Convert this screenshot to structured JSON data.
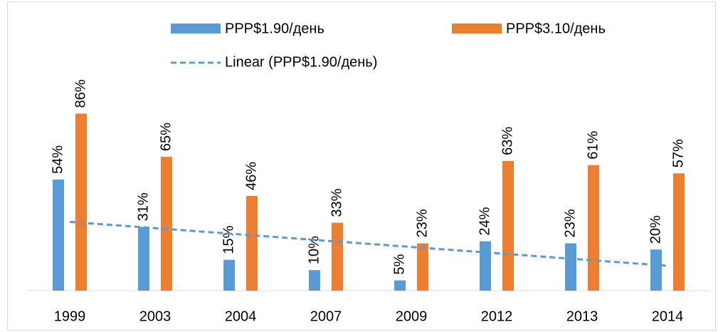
{
  "chart_data": {
    "type": "bar",
    "categories": [
      "1999",
      "2003",
      "2004",
      "2007",
      "2009",
      "2012",
      "2013",
      "2014"
    ],
    "series": [
      {
        "name": "PPP$1.90/день",
        "color": "#5b9bd5",
        "values": [
          54,
          31,
          15,
          10,
          5,
          24,
          23,
          20
        ],
        "value_labels": [
          "54%",
          "31%",
          "15%",
          "10%",
          "5%",
          "24%",
          "23%",
          "20%"
        ]
      },
      {
        "name": "PPP$3.10/день",
        "color": "#ed7d31",
        "values": [
          86,
          65,
          46,
          33,
          23,
          63,
          61,
          57
        ],
        "value_labels": [
          "86%",
          "65%",
          "46%",
          "33%",
          "23%",
          "63%",
          "61%",
          "57%"
        ]
      }
    ],
    "trendline": {
      "name": "Linear (PPP$1.90/день)",
      "series": 0,
      "kind": "linear",
      "color": "#5b9bd5"
    },
    "legend": "top"
  }
}
